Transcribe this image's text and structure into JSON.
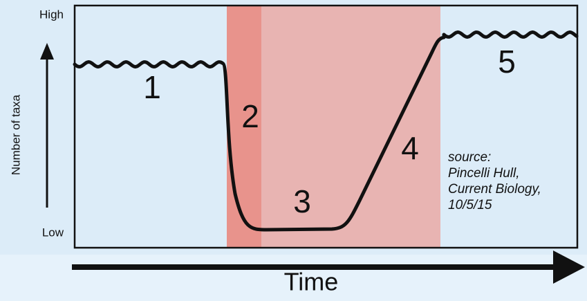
{
  "diagram": {
    "y_axis": {
      "label": "Number of taxa",
      "high": "High",
      "low": "Low"
    },
    "x_axis": {
      "label": "Time"
    },
    "stages": [
      "1",
      "2",
      "3",
      "4",
      "5"
    ],
    "source": [
      "source:",
      "Pincelli Hull,",
      "Current Biology,",
      "10/5/15"
    ]
  }
}
